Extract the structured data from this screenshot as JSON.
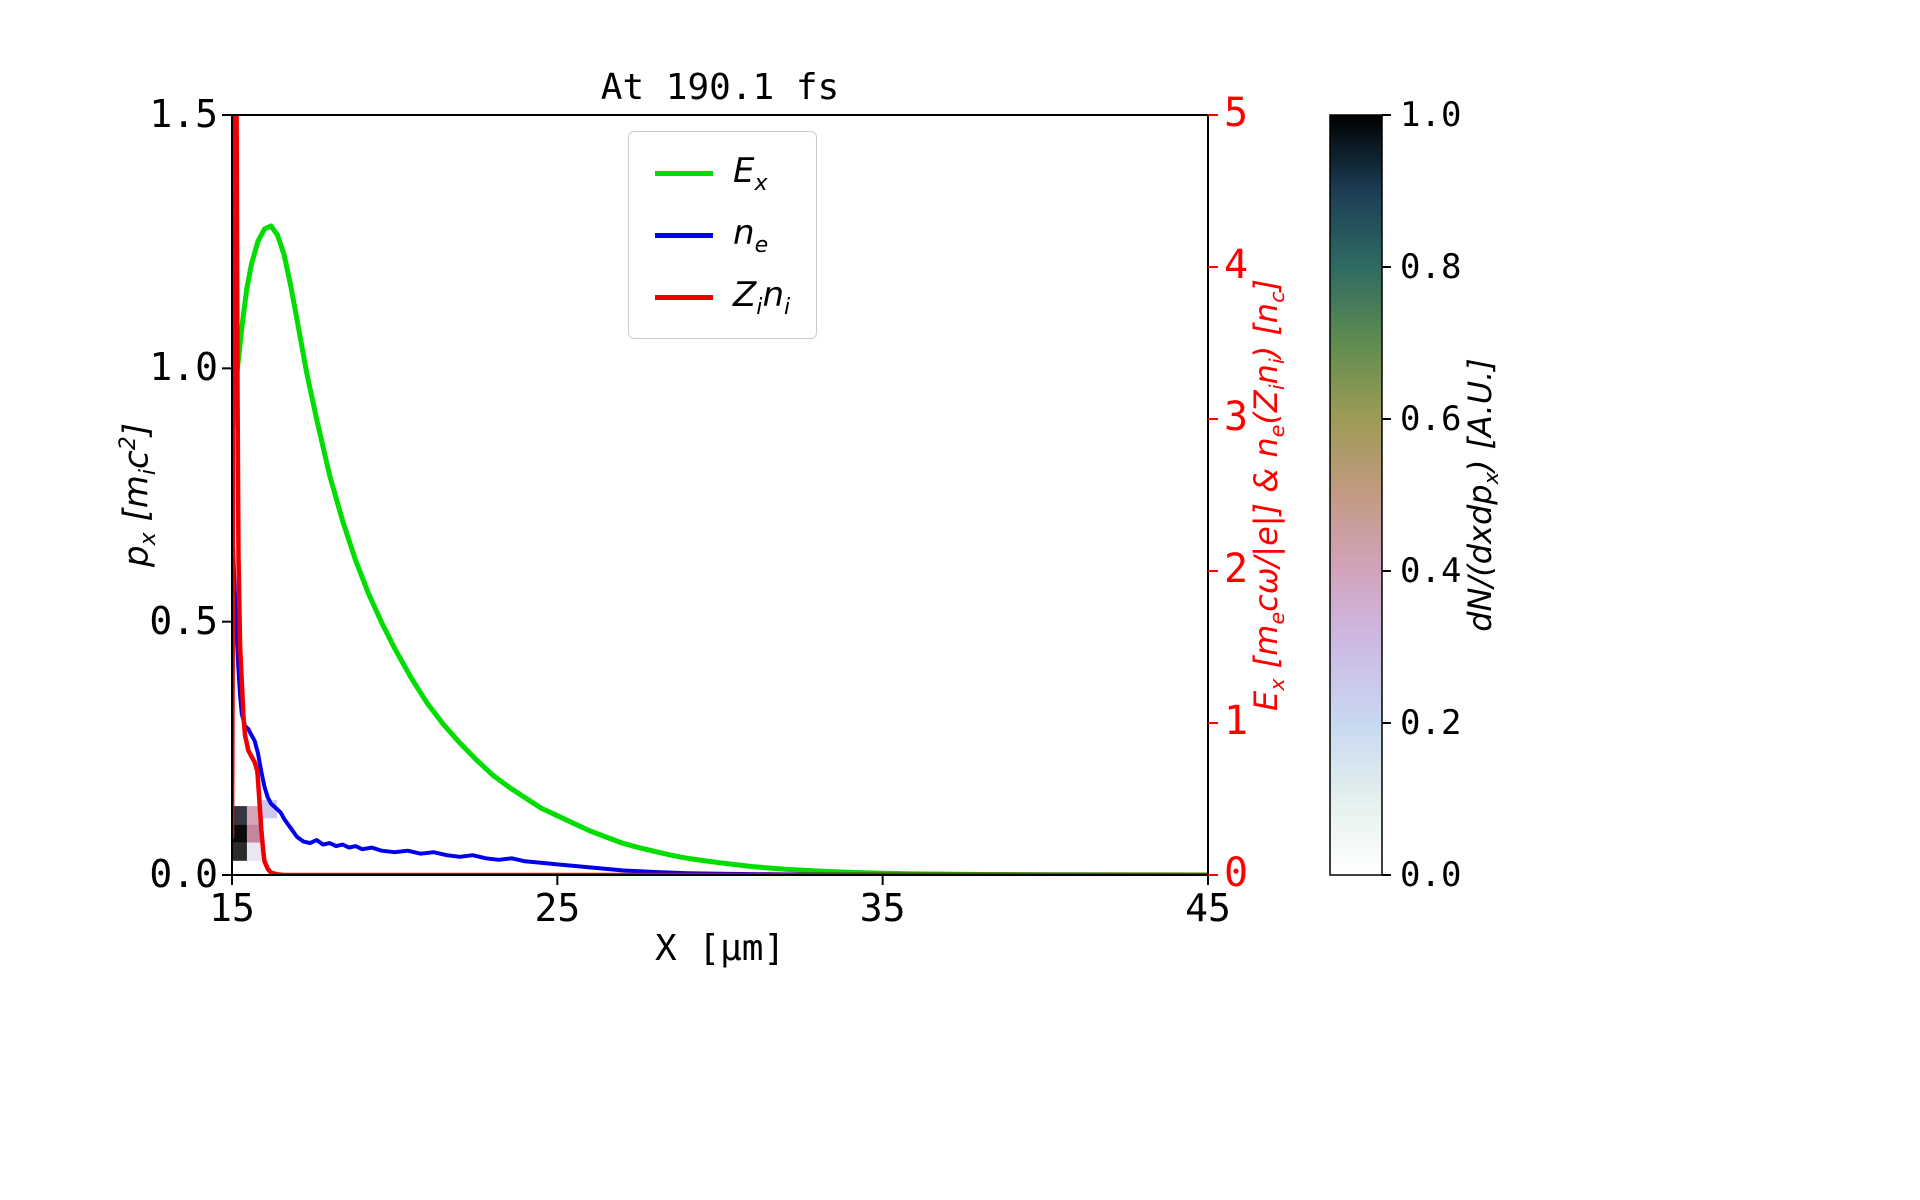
{
  "figure": {
    "background": "#ffffff"
  },
  "chart_data": {
    "type": "line",
    "title": "At 190.1 fs",
    "xlabel": "X [μm]",
    "ylabel_left": "p_x [m_ic^2]",
    "ylabel_right": "E_x [m_ecω/|e|] & n_e(Z_in_i) [n_c]",
    "xlim": [
      15,
      45
    ],
    "ylim_left": [
      0,
      1.5
    ],
    "ylim_right": [
      0,
      5
    ],
    "grid": false,
    "legend_position": "upper left-center inside axes",
    "axis_colors": {
      "left": "#000000",
      "bottom": "#000000",
      "right": "#ff0000"
    },
    "xticks": [
      [
        15,
        "15"
      ],
      [
        25,
        "25"
      ],
      [
        35,
        "35"
      ],
      [
        45,
        "45"
      ]
    ],
    "yticks_left": [
      [
        0,
        "0.0"
      ],
      [
        0.5,
        "0.5"
      ],
      [
        1.0,
        "1.0"
      ],
      [
        1.5,
        "1.5"
      ]
    ],
    "yticks_right": [
      [
        0,
        "0"
      ],
      [
        1,
        "1"
      ],
      [
        2,
        "2"
      ],
      [
        3,
        "3"
      ],
      [
        4,
        "4"
      ],
      [
        5,
        "5"
      ]
    ],
    "series": [
      {
        "name": "Ex",
        "label": "E_x",
        "color": "#00dd00",
        "width": 5,
        "axis": "right",
        "points": [
          [
            15.0,
            2.9
          ],
          [
            15.15,
            3.3
          ],
          [
            15.3,
            3.6
          ],
          [
            15.45,
            3.85
          ],
          [
            15.6,
            4.02
          ],
          [
            15.8,
            4.17
          ],
          [
            16.0,
            4.25
          ],
          [
            16.2,
            4.27
          ],
          [
            16.4,
            4.21
          ],
          [
            16.6,
            4.08
          ],
          [
            16.8,
            3.88
          ],
          [
            17.0,
            3.65
          ],
          [
            17.3,
            3.3
          ],
          [
            17.6,
            3.0
          ],
          [
            18.0,
            2.63
          ],
          [
            18.4,
            2.33
          ],
          [
            18.8,
            2.07
          ],
          [
            19.2,
            1.85
          ],
          [
            19.6,
            1.66
          ],
          [
            20.0,
            1.49
          ],
          [
            20.5,
            1.3
          ],
          [
            21.0,
            1.13
          ],
          [
            21.5,
            0.99
          ],
          [
            22.0,
            0.87
          ],
          [
            22.5,
            0.76
          ],
          [
            23.0,
            0.66
          ],
          [
            23.5,
            0.58
          ],
          [
            24.0,
            0.51
          ],
          [
            24.5,
            0.44
          ],
          [
            25.0,
            0.39
          ],
          [
            25.5,
            0.34
          ],
          [
            26.0,
            0.29
          ],
          [
            26.5,
            0.25
          ],
          [
            27.0,
            0.21
          ],
          [
            27.5,
            0.18
          ],
          [
            28.0,
            0.155
          ],
          [
            28.5,
            0.13
          ],
          [
            29.0,
            0.11
          ],
          [
            29.5,
            0.095
          ],
          [
            30.0,
            0.08
          ],
          [
            31.0,
            0.055
          ],
          [
            32.0,
            0.038
          ],
          [
            33.0,
            0.026
          ],
          [
            34.0,
            0.017
          ],
          [
            35.0,
            0.011
          ],
          [
            36.0,
            0.007
          ],
          [
            38.0,
            0.003
          ],
          [
            40.0,
            0.001
          ],
          [
            45.0,
            0.0
          ]
        ]
      },
      {
        "name": "ne",
        "label": "n_e",
        "color": "#0000ee",
        "width": 4,
        "axis": "right",
        "points": [
          [
            15.0,
            2.35
          ],
          [
            15.05,
            2.05
          ],
          [
            15.1,
            1.78
          ],
          [
            15.15,
            1.55
          ],
          [
            15.2,
            1.35
          ],
          [
            15.25,
            1.18
          ],
          [
            15.3,
            1.06
          ],
          [
            15.4,
            0.98
          ],
          [
            15.5,
            0.96
          ],
          [
            15.6,
            0.92
          ],
          [
            15.7,
            0.88
          ],
          [
            15.8,
            0.8
          ],
          [
            15.9,
            0.68
          ],
          [
            16.0,
            0.58
          ],
          [
            16.1,
            0.51
          ],
          [
            16.2,
            0.47
          ],
          [
            16.3,
            0.45
          ],
          [
            16.4,
            0.43
          ],
          [
            16.5,
            0.41
          ],
          [
            16.6,
            0.37
          ],
          [
            16.7,
            0.34
          ],
          [
            16.8,
            0.31
          ],
          [
            16.9,
            0.28
          ],
          [
            17.0,
            0.25
          ],
          [
            17.2,
            0.22
          ],
          [
            17.4,
            0.21
          ],
          [
            17.6,
            0.23
          ],
          [
            17.8,
            0.2
          ],
          [
            18.0,
            0.21
          ],
          [
            18.2,
            0.19
          ],
          [
            18.4,
            0.2
          ],
          [
            18.6,
            0.18
          ],
          [
            18.8,
            0.19
          ],
          [
            19.0,
            0.17
          ],
          [
            19.3,
            0.18
          ],
          [
            19.6,
            0.16
          ],
          [
            20.0,
            0.15
          ],
          [
            20.4,
            0.16
          ],
          [
            20.8,
            0.14
          ],
          [
            21.2,
            0.15
          ],
          [
            21.6,
            0.13
          ],
          [
            22.0,
            0.12
          ],
          [
            22.4,
            0.13
          ],
          [
            22.8,
            0.11
          ],
          [
            23.2,
            0.1
          ],
          [
            23.6,
            0.11
          ],
          [
            24.0,
            0.09
          ],
          [
            24.5,
            0.08
          ],
          [
            25.0,
            0.07
          ],
          [
            25.5,
            0.06
          ],
          [
            26.0,
            0.05
          ],
          [
            26.5,
            0.04
          ],
          [
            27.0,
            0.03
          ],
          [
            28.0,
            0.02
          ],
          [
            29.0,
            0.012
          ],
          [
            30.0,
            0.008
          ],
          [
            32.0,
            0.004
          ],
          [
            35.0,
            0.002
          ],
          [
            40.0,
            0.001
          ],
          [
            45.0,
            0.0
          ]
        ]
      },
      {
        "name": "Zini",
        "label": "Z_in_i",
        "color": "#ee0000",
        "width": 4.5,
        "axis": "right",
        "points": [
          [
            15.0,
            0.25
          ],
          [
            15.02,
            1.5
          ],
          [
            15.04,
            5.0
          ],
          [
            15.14,
            5.0
          ],
          [
            15.17,
            3.2
          ],
          [
            15.2,
            2.1
          ],
          [
            15.25,
            1.5
          ],
          [
            15.3,
            1.27
          ],
          [
            15.35,
            1.05
          ],
          [
            15.4,
            0.92
          ],
          [
            15.5,
            0.82
          ],
          [
            15.6,
            0.78
          ],
          [
            15.7,
            0.74
          ],
          [
            15.78,
            0.68
          ],
          [
            15.84,
            0.5
          ],
          [
            15.9,
            0.3
          ],
          [
            15.96,
            0.16
          ],
          [
            16.0,
            0.09
          ],
          [
            16.1,
            0.04
          ],
          [
            16.2,
            0.015
          ],
          [
            16.4,
            0.004
          ],
          [
            16.6,
            0.0
          ],
          [
            20.0,
            0.0
          ],
          [
            30.0,
            0.0
          ],
          [
            45.0,
            0.0
          ]
        ]
      }
    ],
    "histogram2d": {
      "description": "phase-space density dN/(dxdp_x) plotted against left axis",
      "axis": "left",
      "cells": [
        {
          "x": 15.0,
          "w": 0.46,
          "y": 0.028,
          "h": 0.036,
          "c": "#2b2b2b"
        },
        {
          "x": 15.0,
          "w": 0.46,
          "y": 0.064,
          "h": 0.036,
          "c": "#0a0a0a"
        },
        {
          "x": 15.0,
          "w": 0.46,
          "y": 0.1,
          "h": 0.036,
          "c": "#353540"
        },
        {
          "x": 15.46,
          "w": 0.46,
          "y": 0.028,
          "h": 0.036,
          "c": "#ece6f2"
        },
        {
          "x": 15.46,
          "w": 0.46,
          "y": 0.064,
          "h": 0.036,
          "c": "#c4879f"
        },
        {
          "x": 15.46,
          "w": 0.46,
          "y": 0.1,
          "h": 0.036,
          "c": "#d4a4b8"
        },
        {
          "x": 15.92,
          "w": 0.46,
          "y": 0.112,
          "h": 0.036,
          "c": "#cfc7ee"
        }
      ]
    },
    "colorbar": {
      "label": "dN/(dxdp_x) [A.U.]",
      "range": [
        0,
        1
      ],
      "ticks": [
        [
          0,
          "0.0"
        ],
        [
          0.2,
          "0.2"
        ],
        [
          0.4,
          "0.4"
        ],
        [
          0.6,
          "0.6"
        ],
        [
          0.8,
          "0.8"
        ],
        [
          1.0,
          "1.0"
        ]
      ],
      "gradient_stops": [
        {
          "pos": 0.0,
          "color": "#ffffff"
        },
        {
          "pos": 0.1,
          "color": "#e3f0ee"
        },
        {
          "pos": 0.2,
          "color": "#c8d8f0"
        },
        {
          "pos": 0.3,
          "color": "#cdbbe6"
        },
        {
          "pos": 0.4,
          "color": "#d2a3bd"
        },
        {
          "pos": 0.5,
          "color": "#c39a83"
        },
        {
          "pos": 0.6,
          "color": "#9d9b55"
        },
        {
          "pos": 0.7,
          "color": "#5f8c50"
        },
        {
          "pos": 0.8,
          "color": "#2f6b63"
        },
        {
          "pos": 0.9,
          "color": "#1c3d55"
        },
        {
          "pos": 1.0,
          "color": "#000000"
        }
      ]
    }
  }
}
